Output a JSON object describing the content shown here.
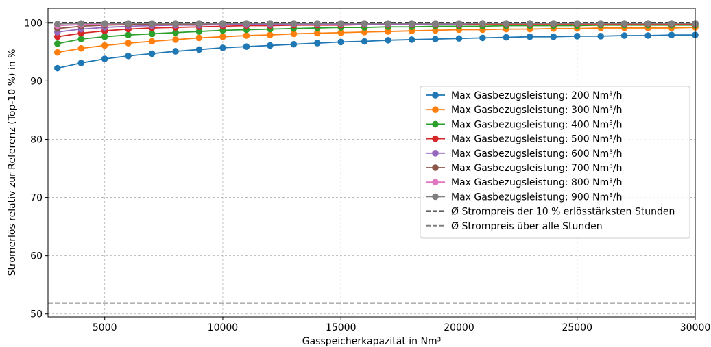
{
  "chart_data": {
    "type": "line",
    "title": "",
    "xlabel": "Gasspeicherkapazität in Nm³",
    "ylabel": "Stromerlös relativ zur Referenz (Top-10 %) in %",
    "xlim": [
      2600,
      30000
    ],
    "ylim": [
      49.5,
      102.5
    ],
    "grid": true,
    "legend_position": "center-right",
    "x_ticks": [
      5000,
      10000,
      15000,
      20000,
      25000,
      30000
    ],
    "y_ticks": [
      50,
      60,
      70,
      80,
      90,
      100
    ],
    "x": [
      3000,
      4000,
      5000,
      6000,
      7000,
      8000,
      9000,
      10000,
      11000,
      12000,
      13000,
      14000,
      15000,
      16000,
      17000,
      18000,
      19000,
      20000,
      21000,
      22000,
      23000,
      24000,
      25000,
      26000,
      27000,
      28000,
      29000,
      30000
    ],
    "series": [
      {
        "name": "Max Gasbezugsleistung: 200 Nm³/h",
        "color": "#1f77b4",
        "values": [
          92.2,
          93.1,
          93.8,
          94.3,
          94.7,
          95.1,
          95.4,
          95.7,
          95.9,
          96.1,
          96.3,
          96.5,
          96.7,
          96.8,
          97.0,
          97.1,
          97.2,
          97.3,
          97.4,
          97.5,
          97.6,
          97.6,
          97.7,
          97.7,
          97.8,
          97.8,
          97.9,
          97.9
        ]
      },
      {
        "name": "Max Gasbezugsleistung: 300 Nm³/h",
        "color": "#ff7f0e",
        "values": [
          94.9,
          95.6,
          96.1,
          96.5,
          96.8,
          97.1,
          97.4,
          97.6,
          97.8,
          97.9,
          98.1,
          98.2,
          98.3,
          98.4,
          98.5,
          98.6,
          98.7,
          98.8,
          98.8,
          98.9,
          98.9,
          99.0,
          99.0,
          99.1,
          99.1,
          99.1,
          99.1,
          99.2
        ]
      },
      {
        "name": "Max Gasbezugsleistung: 400 Nm³/h",
        "color": "#2ca02c",
        "values": [
          96.4,
          97.2,
          97.6,
          97.9,
          98.1,
          98.3,
          98.5,
          98.7,
          98.8,
          98.9,
          99.0,
          99.1,
          99.2,
          99.2,
          99.3,
          99.3,
          99.4,
          99.4,
          99.4,
          99.5,
          99.5,
          99.5,
          99.5,
          99.6,
          99.6,
          99.6,
          99.6,
          99.6
        ]
      },
      {
        "name": "Max Gasbezugsleistung: 500 Nm³/h",
        "color": "#d62728",
        "values": [
          97.6,
          98.2,
          98.6,
          98.9,
          99.1,
          99.2,
          99.3,
          99.4,
          99.5,
          99.5,
          99.6,
          99.6,
          99.6,
          99.7,
          99.7,
          99.7,
          99.7,
          99.7,
          99.8,
          99.8,
          99.8,
          99.8,
          99.8,
          99.8,
          99.8,
          99.8,
          99.8,
          99.8
        ]
      },
      {
        "name": "Max Gasbezugsleistung: 600 Nm³/h",
        "color": "#9467bd",
        "values": [
          98.4,
          98.9,
          99.2,
          99.4,
          99.5,
          99.6,
          99.6,
          99.7,
          99.7,
          99.7,
          99.8,
          99.8,
          99.8,
          99.8,
          99.8,
          99.8,
          99.8,
          99.8,
          99.9,
          99.9,
          99.9,
          99.9,
          99.9,
          99.9,
          99.9,
          99.9,
          99.9,
          99.9
        ]
      },
      {
        "name": "Max Gasbezugsleistung: 700 Nm³/h",
        "color": "#8c564b",
        "values": [
          99.0,
          99.4,
          99.6,
          99.7,
          99.8,
          99.8,
          99.8,
          99.9,
          99.9,
          99.9,
          99.9,
          99.9,
          99.9,
          99.9,
          99.9,
          99.9,
          99.9,
          99.9,
          99.9,
          99.9,
          99.9,
          99.9,
          99.9,
          99.9,
          99.9,
          99.9,
          99.9,
          99.9
        ]
      },
      {
        "name": "Max Gasbezugsleistung: 800 Nm³/h",
        "color": "#e377c2",
        "values": [
          99.5,
          99.7,
          99.8,
          99.9,
          99.9,
          99.9,
          99.9,
          99.9,
          99.9,
          99.9,
          99.9,
          99.9,
          99.9,
          99.9,
          99.9,
          99.9,
          99.9,
          99.9,
          99.9,
          99.9,
          99.9,
          99.9,
          99.9,
          99.9,
          99.9,
          99.9,
          99.9,
          99.9
        ]
      },
      {
        "name": "Max Gasbezugsleistung: 900 Nm³/h",
        "color": "#7f7f7f",
        "values": [
          99.8,
          99.9,
          99.9,
          99.9,
          99.9,
          99.9,
          99.9,
          99.9,
          99.9,
          99.9,
          99.9,
          99.9,
          99.9,
          99.9,
          99.9,
          99.9,
          99.9,
          99.9,
          99.9,
          99.9,
          99.9,
          99.9,
          99.9,
          99.9,
          99.9,
          99.9,
          99.9,
          99.9
        ]
      }
    ],
    "reference_lines": [
      {
        "name": "Ø Strompreis der 10 % erlösstärksten Stunden",
        "value": 100.0,
        "color": "#000000"
      },
      {
        "name": "Ø Strompreis über alle Stunden",
        "value": 51.9,
        "color": "#808080"
      }
    ]
  }
}
